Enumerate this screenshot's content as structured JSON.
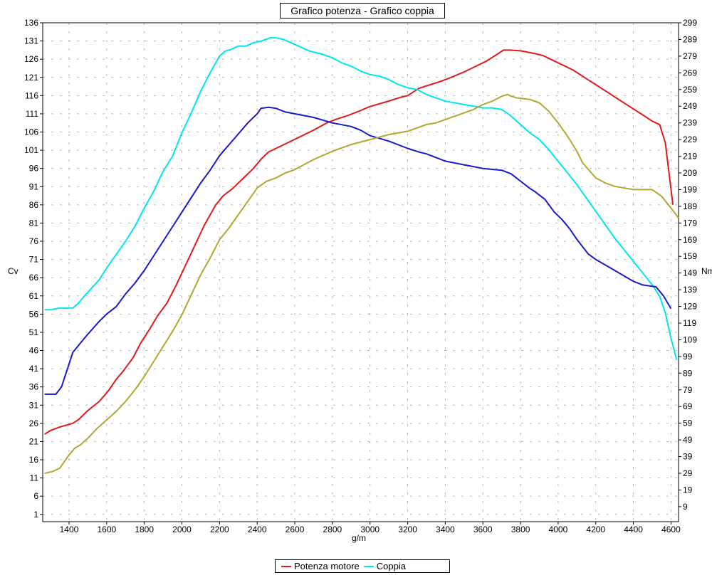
{
  "chart_data": {
    "type": "line",
    "title": "Grafico potenza - Grafico coppia",
    "xlabel": "g/m",
    "ylabel_left": "Cv",
    "ylabel_right": "Nm",
    "xlim": [
      1260,
      4640
    ],
    "ylim_left": [
      -1,
      136
    ],
    "ylim_right": [
      0,
      299
    ],
    "x_ticks": [
      1400,
      1600,
      1800,
      2000,
      2200,
      2400,
      2600,
      2800,
      3000,
      3200,
      3400,
      3600,
      3800,
      4000,
      4200,
      4400,
      4600
    ],
    "y_ticks_left": [
      136,
      131,
      126,
      121,
      116,
      111,
      106,
      101,
      96,
      91,
      86,
      81,
      76,
      71,
      66,
      61,
      56,
      51,
      46,
      41,
      36,
      31,
      26,
      21,
      16,
      11,
      6,
      1
    ],
    "y_ticks_right": [
      299,
      289,
      279,
      269,
      259,
      249,
      239,
      229,
      219,
      209,
      199,
      189,
      179,
      169,
      159,
      149,
      139,
      129,
      119,
      109,
      99,
      89,
      79,
      69,
      59,
      49,
      39,
      29,
      19,
      9
    ],
    "grid": true,
    "legend_position": "bottom",
    "series": [
      {
        "name": "Potenza motore",
        "axis": "left",
        "color": "#e31a1c",
        "points": [
          [
            1270,
            23
          ],
          [
            1300,
            24
          ],
          [
            1350,
            25
          ],
          [
            1420,
            26
          ],
          [
            1450,
            27
          ],
          [
            1500,
            29.5
          ],
          [
            1560,
            32
          ],
          [
            1610,
            35
          ],
          [
            1650,
            38
          ],
          [
            1690,
            40.5
          ],
          [
            1740,
            44
          ],
          [
            1780,
            48
          ],
          [
            1830,
            52
          ],
          [
            1870,
            55.5
          ],
          [
            1920,
            59
          ],
          [
            1970,
            64
          ],
          [
            2020,
            69.5
          ],
          [
            2070,
            75
          ],
          [
            2120,
            80.5
          ],
          [
            2180,
            86
          ],
          [
            2220,
            88.5
          ],
          [
            2270,
            90.5
          ],
          [
            2320,
            93
          ],
          [
            2380,
            96
          ],
          [
            2420,
            98.5
          ],
          [
            2460,
            100.5
          ],
          [
            2500,
            101.5
          ],
          [
            2560,
            103
          ],
          [
            2620,
            104.5
          ],
          [
            2700,
            106.5
          ],
          [
            2770,
            108.5
          ],
          [
            2820,
            109.5
          ],
          [
            2880,
            110.5
          ],
          [
            2930,
            111.5
          ],
          [
            3000,
            113
          ],
          [
            3100,
            114.5
          ],
          [
            3160,
            115.5
          ],
          [
            3200,
            116
          ],
          [
            3260,
            118
          ],
          [
            3320,
            119
          ],
          [
            3380,
            120
          ],
          [
            3430,
            121
          ],
          [
            3500,
            122.5
          ],
          [
            3560,
            124
          ],
          [
            3620,
            125.5
          ],
          [
            3680,
            127.5
          ],
          [
            3710,
            128.5
          ],
          [
            3740,
            128.5
          ],
          [
            3800,
            128.3
          ],
          [
            3880,
            127.5
          ],
          [
            3920,
            127
          ],
          [
            3960,
            126
          ],
          [
            4020,
            124.5
          ],
          [
            4080,
            123
          ],
          [
            4140,
            121
          ],
          [
            4200,
            119
          ],
          [
            4260,
            117
          ],
          [
            4320,
            115
          ],
          [
            4380,
            113
          ],
          [
            4440,
            111
          ],
          [
            4500,
            109
          ],
          [
            4540,
            108
          ],
          [
            4570,
            103
          ],
          [
            4610,
            86
          ]
        ]
      },
      {
        "name": "Coppia",
        "axis": "right",
        "color": "#00e5ee",
        "points": [
          [
            1270,
            127
          ],
          [
            1300,
            127
          ],
          [
            1350,
            128
          ],
          [
            1420,
            128
          ],
          [
            1450,
            131
          ],
          [
            1480,
            135
          ],
          [
            1520,
            140
          ],
          [
            1560,
            145
          ],
          [
            1600,
            152
          ],
          [
            1650,
            160
          ],
          [
            1700,
            168
          ],
          [
            1750,
            177
          ],
          [
            1800,
            188
          ],
          [
            1850,
            198
          ],
          [
            1900,
            210
          ],
          [
            1950,
            219
          ],
          [
            2000,
            233
          ],
          [
            2050,
            245
          ],
          [
            2100,
            258
          ],
          [
            2150,
            269
          ],
          [
            2200,
            279
          ],
          [
            2230,
            282
          ],
          [
            2260,
            283
          ],
          [
            2300,
            285
          ],
          [
            2340,
            285
          ],
          [
            2380,
            287
          ],
          [
            2420,
            288
          ],
          [
            2470,
            290
          ],
          [
            2500,
            290
          ],
          [
            2540,
            289
          ],
          [
            2580,
            287
          ],
          [
            2620,
            285
          ],
          [
            2680,
            282
          ],
          [
            2750,
            280
          ],
          [
            2800,
            278
          ],
          [
            2850,
            275
          ],
          [
            2900,
            273
          ],
          [
            2950,
            270
          ],
          [
            3000,
            268
          ],
          [
            3050,
            267
          ],
          [
            3100,
            265
          ],
          [
            3150,
            262
          ],
          [
            3200,
            260
          ],
          [
            3250,
            259
          ],
          [
            3300,
            256
          ],
          [
            3350,
            254
          ],
          [
            3400,
            252
          ],
          [
            3450,
            251
          ],
          [
            3500,
            250
          ],
          [
            3550,
            249
          ],
          [
            3600,
            248
          ],
          [
            3650,
            248
          ],
          [
            3700,
            247
          ],
          [
            3740,
            244
          ],
          [
            3800,
            238
          ],
          [
            3850,
            233
          ],
          [
            3900,
            229
          ],
          [
            3950,
            223
          ],
          [
            4000,
            216
          ],
          [
            4050,
            209
          ],
          [
            4100,
            202
          ],
          [
            4150,
            194
          ],
          [
            4200,
            186
          ],
          [
            4250,
            178
          ],
          [
            4300,
            170
          ],
          [
            4350,
            163
          ],
          [
            4400,
            156
          ],
          [
            4450,
            149
          ],
          [
            4500,
            142
          ],
          [
            4540,
            135
          ],
          [
            4570,
            125
          ],
          [
            4600,
            110
          ],
          [
            4630,
            97
          ]
        ]
      },
      {
        "axis": "left",
        "color": "#1a1acc",
        "points": [
          [
            1270,
            34
          ],
          [
            1330,
            34
          ],
          [
            1360,
            36
          ],
          [
            1420,
            45.5
          ],
          [
            1460,
            48
          ],
          [
            1500,
            50.5
          ],
          [
            1560,
            54
          ],
          [
            1600,
            56
          ],
          [
            1650,
            58
          ],
          [
            1700,
            61.5
          ],
          [
            1750,
            64.5
          ],
          [
            1800,
            68
          ],
          [
            1850,
            72
          ],
          [
            1900,
            76
          ],
          [
            1950,
            80
          ],
          [
            2000,
            84
          ],
          [
            2050,
            88
          ],
          [
            2100,
            92
          ],
          [
            2150,
            95.5
          ],
          [
            2200,
            99.5
          ],
          [
            2250,
            102.5
          ],
          [
            2300,
            105.5
          ],
          [
            2350,
            108.5
          ],
          [
            2400,
            111
          ],
          [
            2420,
            112.5
          ],
          [
            2460,
            112.8
          ],
          [
            2500,
            112.5
          ],
          [
            2550,
            111.5
          ],
          [
            2600,
            111
          ],
          [
            2700,
            110
          ],
          [
            2800,
            108.5
          ],
          [
            2900,
            107.5
          ],
          [
            2950,
            106.5
          ],
          [
            3000,
            105
          ],
          [
            3100,
            103.5
          ],
          [
            3200,
            101.5
          ],
          [
            3260,
            100.5
          ],
          [
            3300,
            100
          ],
          [
            3350,
            99
          ],
          [
            3400,
            98
          ],
          [
            3500,
            97
          ],
          [
            3550,
            96.5
          ],
          [
            3600,
            96
          ],
          [
            3700,
            95.5
          ],
          [
            3750,
            94.5
          ],
          [
            3800,
            92.5
          ],
          [
            3850,
            90.5
          ],
          [
            3880,
            89.5
          ],
          [
            3930,
            87.5
          ],
          [
            3980,
            84
          ],
          [
            4020,
            82
          ],
          [
            4060,
            79.5
          ],
          [
            4100,
            76.5
          ],
          [
            4130,
            74.5
          ],
          [
            4160,
            72.5
          ],
          [
            4200,
            71
          ],
          [
            4250,
            69.5
          ],
          [
            4300,
            68
          ],
          [
            4350,
            66.5
          ],
          [
            4400,
            65
          ],
          [
            4450,
            64
          ],
          [
            4520,
            63.5
          ],
          [
            4560,
            61
          ],
          [
            4600,
            57.5
          ]
        ]
      },
      {
        "axis": "right",
        "color": "#b0a832",
        "points": [
          [
            1270,
            29
          ],
          [
            1310,
            30
          ],
          [
            1350,
            32
          ],
          [
            1400,
            40
          ],
          [
            1430,
            44
          ],
          [
            1460,
            46
          ],
          [
            1500,
            50
          ],
          [
            1550,
            56
          ],
          [
            1600,
            61
          ],
          [
            1650,
            66
          ],
          [
            1700,
            72
          ],
          [
            1750,
            79
          ],
          [
            1800,
            87
          ],
          [
            1850,
            96
          ],
          [
            1900,
            105
          ],
          [
            1950,
            114
          ],
          [
            2000,
            124
          ],
          [
            2050,
            136
          ],
          [
            2100,
            148
          ],
          [
            2150,
            158
          ],
          [
            2200,
            169
          ],
          [
            2250,
            176
          ],
          [
            2300,
            184
          ],
          [
            2350,
            192
          ],
          [
            2400,
            200
          ],
          [
            2450,
            204
          ],
          [
            2500,
            206
          ],
          [
            2550,
            209
          ],
          [
            2600,
            211
          ],
          [
            2700,
            217
          ],
          [
            2800,
            222
          ],
          [
            2900,
            226
          ],
          [
            3000,
            229
          ],
          [
            3100,
            232
          ],
          [
            3200,
            234
          ],
          [
            3250,
            236
          ],
          [
            3300,
            238
          ],
          [
            3350,
            239
          ],
          [
            3400,
            241
          ],
          [
            3450,
            243
          ],
          [
            3500,
            245
          ],
          [
            3550,
            247
          ],
          [
            3600,
            250
          ],
          [
            3650,
            252
          ],
          [
            3700,
            255
          ],
          [
            3730,
            256
          ],
          [
            3750,
            255
          ],
          [
            3780,
            254
          ],
          [
            3850,
            253
          ],
          [
            3900,
            251
          ],
          [
            3950,
            246
          ],
          [
            4000,
            239
          ],
          [
            4050,
            231
          ],
          [
            4100,
            222
          ],
          [
            4130,
            215
          ],
          [
            4200,
            206
          ],
          [
            4250,
            203
          ],
          [
            4300,
            201
          ],
          [
            4400,
            199
          ],
          [
            4500,
            199
          ],
          [
            4550,
            195
          ],
          [
            4600,
            188
          ],
          [
            4640,
            182
          ]
        ]
      }
    ]
  },
  "legend": [
    {
      "label": "Potenza motore",
      "color": "#e31a1c"
    },
    {
      "label": "Coppia",
      "color": "#00e5ee"
    }
  ]
}
